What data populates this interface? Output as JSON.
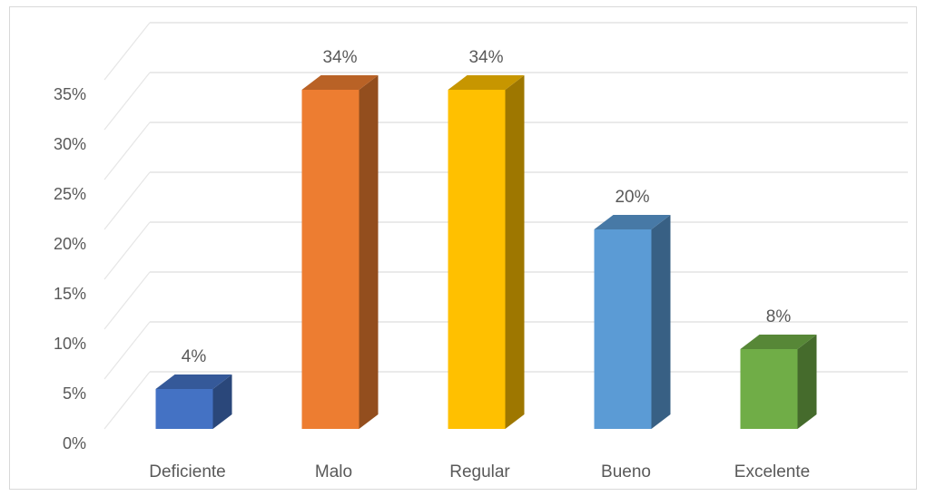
{
  "chart_data": {
    "type": "bar",
    "title": "",
    "xlabel": "",
    "ylabel": "",
    "categories": [
      "Deficiente",
      "Malo",
      "Regular",
      "Bueno",
      "Excelente"
    ],
    "series": [
      {
        "values": [
          4,
          34,
          34,
          20,
          8
        ],
        "data_labels": [
          "4%",
          "34%",
          "34%",
          "20%",
          "8%"
        ]
      }
    ],
    "ylim": [
      0,
      35
    ],
    "yticks": [
      0,
      5,
      10,
      15,
      20,
      25,
      30,
      35
    ],
    "ytick_labels": [
      "0%",
      "5%",
      "10%",
      "15%",
      "20%",
      "25%",
      "30%",
      "35%"
    ],
    "style_3d": true,
    "grid": true,
    "legend": "none",
    "colors": [
      "#4472c4",
      "#ed7d31",
      "#ffc000",
      "#5b9bd5",
      "#70ad47"
    ]
  }
}
